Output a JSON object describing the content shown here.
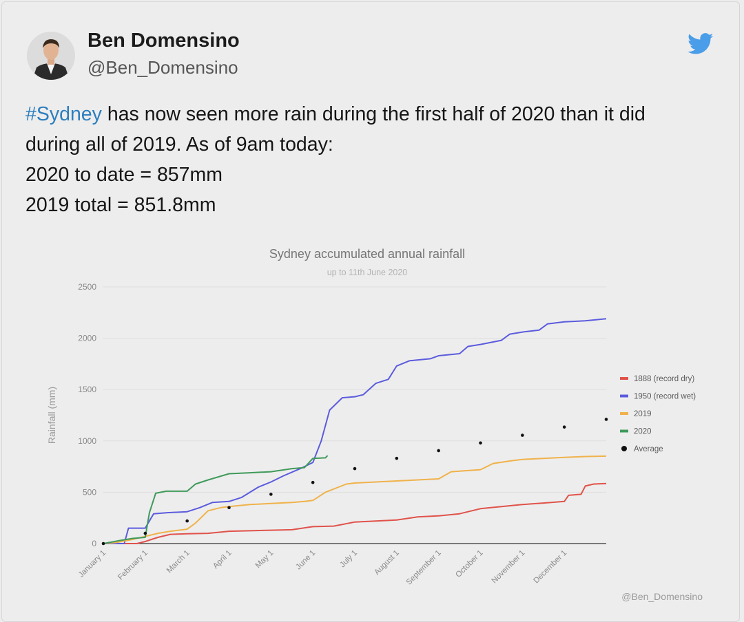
{
  "user": {
    "name": "Ben Domensino",
    "handle": "@Ben_Domensino"
  },
  "tweet": {
    "hashtag": "#Sydney",
    "line1_rest": " has now seen more rain during the first half of 2020 than it did",
    "line2": "during all of 2019. As of 9am today:",
    "line3": "2020 to date = 857mm",
    "line4": "2019 total = 851.8mm"
  },
  "colors": {
    "hashtag": "#2d7fbf",
    "twitter_blue": "#4a9de8",
    "series_1888": "#e0524a",
    "series_1950": "#5b5bde",
    "series_2019": "#f0b24a",
    "series_2020": "#3f9a5a",
    "average": "#111111"
  },
  "chart_data": {
    "type": "line",
    "title": "Sydney accumulated annual rainfall",
    "subtitle": "up to 11th June 2020",
    "ylabel": "Rainfall (mm)",
    "xlabel": "",
    "ylim": [
      0,
      2500
    ],
    "xlim": [
      0,
      12
    ],
    "grid": true,
    "legend_position": "right",
    "watermark": "@Ben_Domensino",
    "y_ticks": [
      "0",
      "500",
      "1000",
      "1500",
      "2000",
      "2500"
    ],
    "x_ticks": [
      {
        "label": "January 1",
        "x": 0
      },
      {
        "label": "February 1",
        "x": 1
      },
      {
        "label": "March 1",
        "x": 2
      },
      {
        "label": "April 1",
        "x": 3
      },
      {
        "label": "May 1",
        "x": 4
      },
      {
        "label": "June 1",
        "x": 5
      },
      {
        "label": "July 1",
        "x": 6
      },
      {
        "label": "August 1",
        "x": 7
      },
      {
        "label": "September 1",
        "x": 8
      },
      {
        "label": "October 1",
        "x": 9
      },
      {
        "label": "November 1",
        "x": 10
      },
      {
        "label": "December 1",
        "x": 11
      }
    ],
    "series": [
      {
        "name": "1888 (record dry)",
        "color": "#e0524a",
        "points": [
          [
            0,
            0
          ],
          [
            0.8,
            0
          ],
          [
            1,
            20
          ],
          [
            1.3,
            60
          ],
          [
            1.6,
            90
          ],
          [
            2,
            95
          ],
          [
            2.5,
            100
          ],
          [
            3,
            120
          ],
          [
            3.5,
            125
          ],
          [
            4,
            130
          ],
          [
            4.5,
            135
          ],
          [
            5,
            165
          ],
          [
            5.5,
            170
          ],
          [
            6,
            210
          ],
          [
            6.5,
            220
          ],
          [
            7,
            230
          ],
          [
            7.5,
            260
          ],
          [
            8,
            270
          ],
          [
            8.5,
            290
          ],
          [
            9,
            340
          ],
          [
            9.5,
            360
          ],
          [
            10,
            380
          ],
          [
            10.5,
            395
          ],
          [
            11,
            410
          ],
          [
            11.1,
            470
          ],
          [
            11.4,
            480
          ],
          [
            11.5,
            560
          ],
          [
            11.7,
            580
          ],
          [
            12,
            585
          ]
        ]
      },
      {
        "name": "1950 (record wet)",
        "color": "#5b5bde",
        "points": [
          [
            0,
            0
          ],
          [
            0.5,
            0
          ],
          [
            0.6,
            150
          ],
          [
            1,
            150
          ],
          [
            1.2,
            290
          ],
          [
            1.5,
            300
          ],
          [
            2,
            310
          ],
          [
            2.3,
            350
          ],
          [
            2.6,
            400
          ],
          [
            3,
            410
          ],
          [
            3.3,
            450
          ],
          [
            3.7,
            550
          ],
          [
            4,
            600
          ],
          [
            4.3,
            660
          ],
          [
            4.7,
            730
          ],
          [
            5,
            790
          ],
          [
            5.2,
            1000
          ],
          [
            5.4,
            1300
          ],
          [
            5.7,
            1420
          ],
          [
            6,
            1430
          ],
          [
            6.2,
            1450
          ],
          [
            6.5,
            1560
          ],
          [
            6.8,
            1600
          ],
          [
            7,
            1730
          ],
          [
            7.3,
            1780
          ],
          [
            7.8,
            1800
          ],
          [
            8,
            1830
          ],
          [
            8.5,
            1850
          ],
          [
            8.7,
            1920
          ],
          [
            9,
            1940
          ],
          [
            9.5,
            1980
          ],
          [
            9.7,
            2040
          ],
          [
            10,
            2060
          ],
          [
            10.4,
            2080
          ],
          [
            10.6,
            2140
          ],
          [
            11,
            2160
          ],
          [
            11.5,
            2170
          ],
          [
            12,
            2190
          ]
        ]
      },
      {
        "name": "2019",
        "color": "#f0b24a",
        "points": [
          [
            0,
            0
          ],
          [
            0.3,
            10
          ],
          [
            0.7,
            40
          ],
          [
            1,
            70
          ],
          [
            1.3,
            100
          ],
          [
            1.6,
            120
          ],
          [
            2,
            140
          ],
          [
            2.2,
            200
          ],
          [
            2.5,
            320
          ],
          [
            2.8,
            350
          ],
          [
            3,
            360
          ],
          [
            3.5,
            380
          ],
          [
            4,
            390
          ],
          [
            4.5,
            400
          ],
          [
            4.8,
            410
          ],
          [
            5,
            420
          ],
          [
            5.3,
            500
          ],
          [
            5.8,
            580
          ],
          [
            6,
            590
          ],
          [
            6.5,
            600
          ],
          [
            7,
            610
          ],
          [
            7.5,
            620
          ],
          [
            8,
            630
          ],
          [
            8.3,
            700
          ],
          [
            9,
            720
          ],
          [
            9.3,
            780
          ],
          [
            9.8,
            810
          ],
          [
            10,
            820
          ],
          [
            10.5,
            830
          ],
          [
            11,
            840
          ],
          [
            11.5,
            848
          ],
          [
            12,
            852
          ]
        ]
      },
      {
        "name": "2020",
        "color": "#3f9a5a",
        "points": [
          [
            0,
            0
          ],
          [
            0.4,
            30
          ],
          [
            0.7,
            50
          ],
          [
            1,
            60
          ],
          [
            1.1,
            300
          ],
          [
            1.25,
            490
          ],
          [
            1.5,
            510
          ],
          [
            2,
            510
          ],
          [
            2.2,
            580
          ],
          [
            2.5,
            620
          ],
          [
            3,
            680
          ],
          [
            3.5,
            690
          ],
          [
            4,
            700
          ],
          [
            4.5,
            730
          ],
          [
            4.8,
            740
          ],
          [
            5,
            830
          ],
          [
            5.3,
            835
          ],
          [
            5.35,
            857
          ]
        ]
      }
    ],
    "average": {
      "name": "Average",
      "points": [
        [
          0,
          0
        ],
        [
          1,
          100
        ],
        [
          2,
          220
        ],
        [
          3,
          350
        ],
        [
          4,
          480
        ],
        [
          5,
          595
        ],
        [
          6,
          730
        ],
        [
          7,
          830
        ],
        [
          8,
          905
        ],
        [
          9,
          980
        ],
        [
          10,
          1055
        ],
        [
          11,
          1135
        ],
        [
          12,
          1210
        ]
      ]
    }
  }
}
